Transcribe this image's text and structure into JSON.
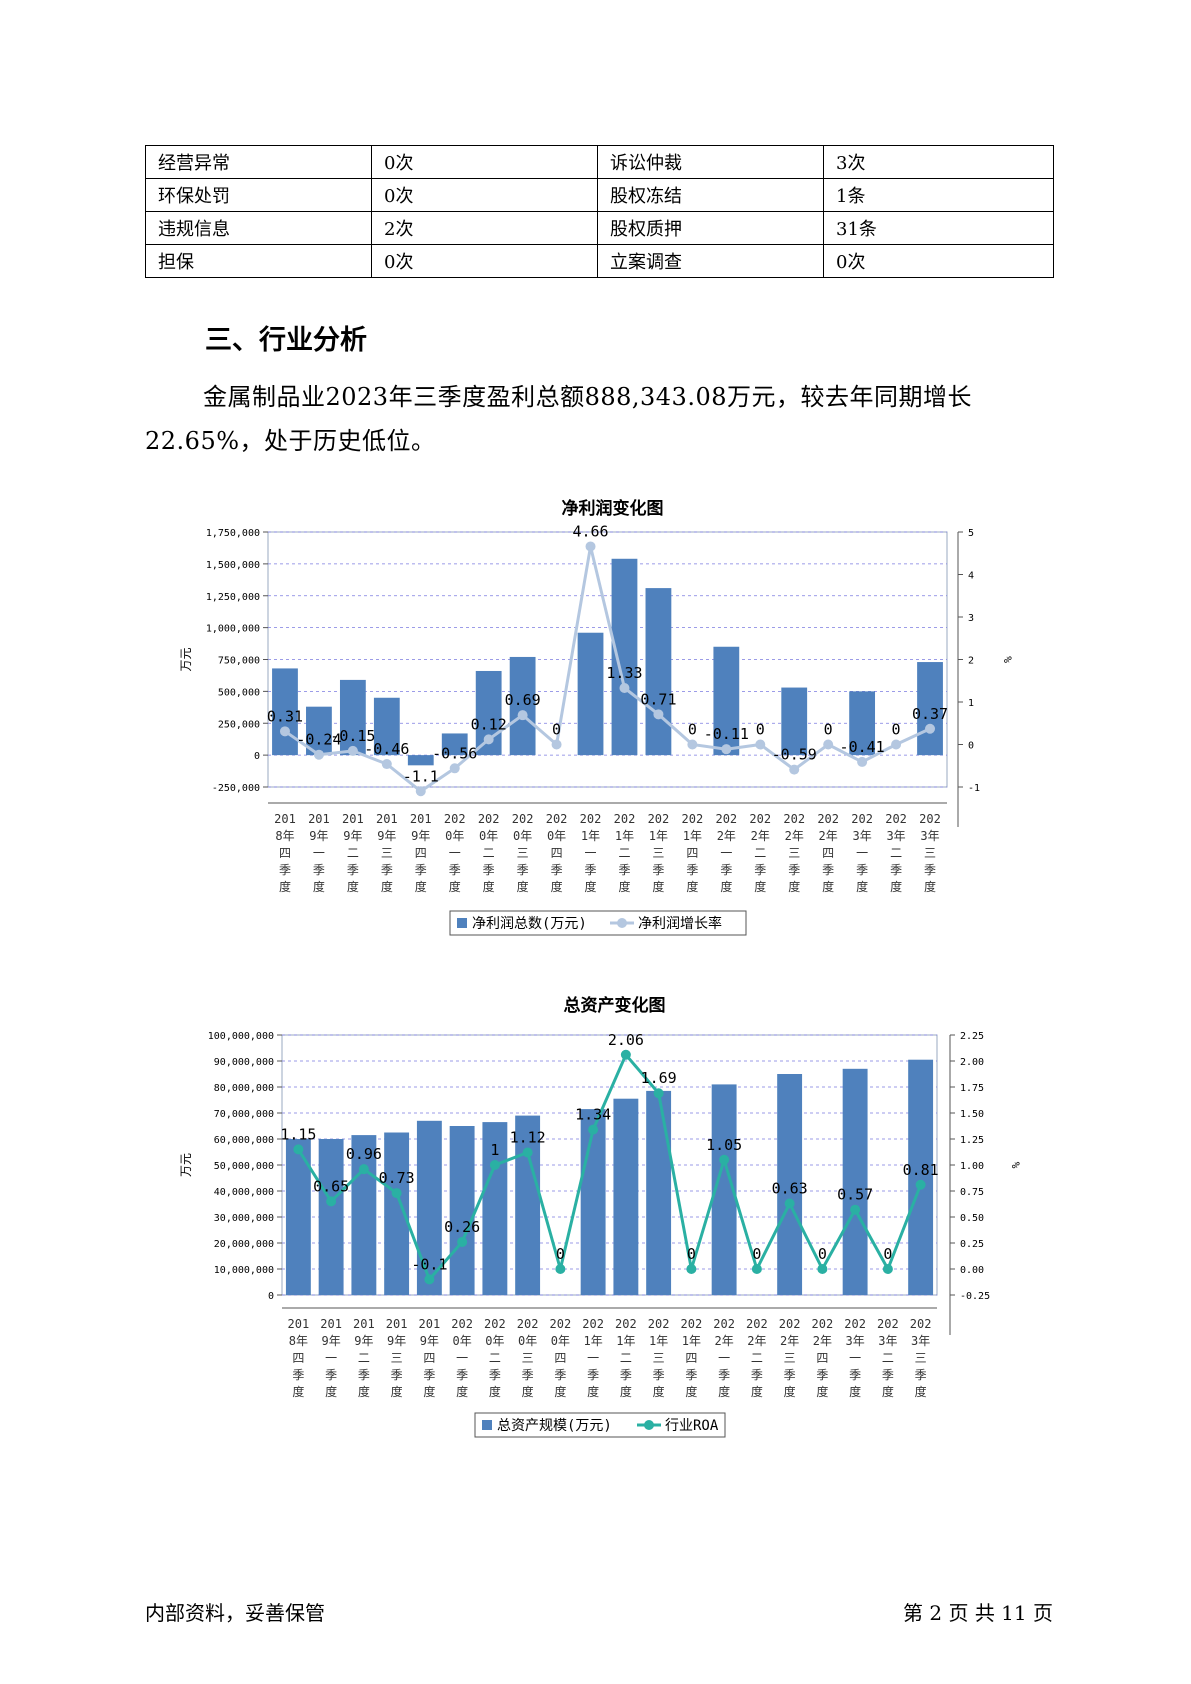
{
  "table": {
    "rows": [
      [
        "经营异常",
        "0次",
        "诉讼仲裁",
        "3次"
      ],
      [
        "环保处罚",
        "0次",
        "股权冻结",
        "1条"
      ],
      [
        "违规信息",
        "2次",
        "股权质押",
        "31条"
      ],
      [
        "担保",
        "0次",
        "立案调查",
        "0次"
      ]
    ]
  },
  "section": {
    "title": "三、行业分析"
  },
  "paragraph": "金属制品业2023年三季度盈利总额888,343.08万元，较去年同期增长22.65%，处于历史低位。",
  "footer": {
    "left": "内部资料，妥善保管",
    "right": "第 2 页  共 11 页"
  },
  "chart_data": [
    {
      "type": "bar+line",
      "title": "净利润变化图",
      "ylabel": "万元",
      "y2label": "%",
      "categories": [
        "2018年四季度",
        "2019年一季度",
        "2019年二季度",
        "2019年三季度",
        "2019年四季度",
        "2020年一季度",
        "2020年二季度",
        "2020年三季度",
        "2020年四季度",
        "2021年一季度",
        "2021年二季度",
        "2021年三季度",
        "2021年四季度",
        "2022年一季度",
        "2022年二季度",
        "2022年三季度",
        "2022年四季度",
        "2023年一季度",
        "2023年二季度",
        "2023年三季度"
      ],
      "ylim": [
        -250000,
        1750000
      ],
      "y2lim": [
        -1,
        5
      ],
      "yticks": [
        "1,750,000",
        "1,500,000",
        "1,250,000",
        "1,000,000",
        "750,000",
        "500,000",
        "250,000",
        "0",
        "-250,000"
      ],
      "y2ticks": [
        "5",
        "4",
        "3",
        "2",
        "1",
        "0",
        "-1"
      ],
      "series": [
        {
          "name": "净利润总数(万元)",
          "kind": "bar",
          "color": "#4f81bd",
          "values": [
            680000,
            380000,
            590000,
            450000,
            -80000,
            170000,
            660000,
            770000,
            0,
            960000,
            1540000,
            1310000,
            0,
            850000,
            0,
            530000,
            0,
            500000,
            0,
            730000
          ]
        },
        {
          "name": "净利润增长率",
          "kind": "line",
          "color": "#b4c7e0",
          "values": [
            0.31,
            -0.24,
            -0.15,
            -0.46,
            -1.1,
            -0.56,
            0.12,
            0.69,
            0,
            4.66,
            1.33,
            0.71,
            0,
            -0.11,
            0,
            -0.59,
            0,
            -0.41,
            0,
            0.37
          ],
          "labels": [
            "0.31",
            "-0.24",
            "-0.15",
            "-0.46",
            "-1.1",
            "-0.56",
            "0.12",
            "0.69",
            "0",
            "4.66",
            "1.33",
            "0.71",
            "0",
            "-0.11",
            "0",
            "-0.59",
            "0",
            "-0.41",
            "0",
            "0.37"
          ]
        }
      ],
      "legend_position": "bottom"
    },
    {
      "type": "bar+line",
      "title": "总资产变化图",
      "ylabel": "万元",
      "y2label": "%",
      "categories": [
        "2018年四季度",
        "2019年一季度",
        "2019年二季度",
        "2019年三季度",
        "2019年四季度",
        "2020年一季度",
        "2020年二季度",
        "2020年三季度",
        "2020年四季度",
        "2021年一季度",
        "2021年二季度",
        "2021年三季度",
        "2021年四季度",
        "2022年一季度",
        "2022年二季度",
        "2022年三季度",
        "2022年四季度",
        "2023年一季度",
        "2023年二季度",
        "2023年三季度"
      ],
      "ylim": [
        0,
        100000000
      ],
      "y2lim": [
        -0.25,
        2.25
      ],
      "yticks": [
        "100,000,000",
        "90,000,000",
        "80,000,000",
        "70,000,000",
        "60,000,000",
        "50,000,000",
        "40,000,000",
        "30,000,000",
        "20,000,000",
        "10,000,000",
        "0"
      ],
      "y2ticks": [
        "2.25",
        "2.00",
        "1.75",
        "1.50",
        "1.25",
        "1.00",
        "0.75",
        "0.50",
        "0.25",
        "0.00",
        "-0.25"
      ],
      "series": [
        {
          "name": "总资产规模(万元)",
          "kind": "bar",
          "color": "#4f81bd",
          "values": [
            60000000,
            60000000,
            61500000,
            62500000,
            67000000,
            65000000,
            66500000,
            69000000,
            0,
            71500000,
            75500000,
            78500000,
            0,
            81000000,
            0,
            85000000,
            0,
            87000000,
            0,
            90500000
          ]
        },
        {
          "name": "行业ROA",
          "kind": "line",
          "color": "#2ab0a3",
          "values": [
            1.15,
            0.65,
            0.96,
            0.73,
            -0.1,
            0.26,
            1,
            1.12,
            0,
            1.34,
            2.06,
            1.69,
            0,
            1.05,
            0,
            0.63,
            0,
            0.57,
            0,
            0.81
          ],
          "labels": [
            "1.15",
            "0.65",
            "0.96",
            "0.73",
            "-0.1",
            "0.26",
            "1",
            "1.12",
            "0",
            "1.34",
            "2.06",
            "1.69",
            "0",
            "1.05",
            "0",
            "0.63",
            "0",
            "0.57",
            "0",
            "0.81"
          ]
        }
      ],
      "legend_position": "bottom"
    }
  ]
}
